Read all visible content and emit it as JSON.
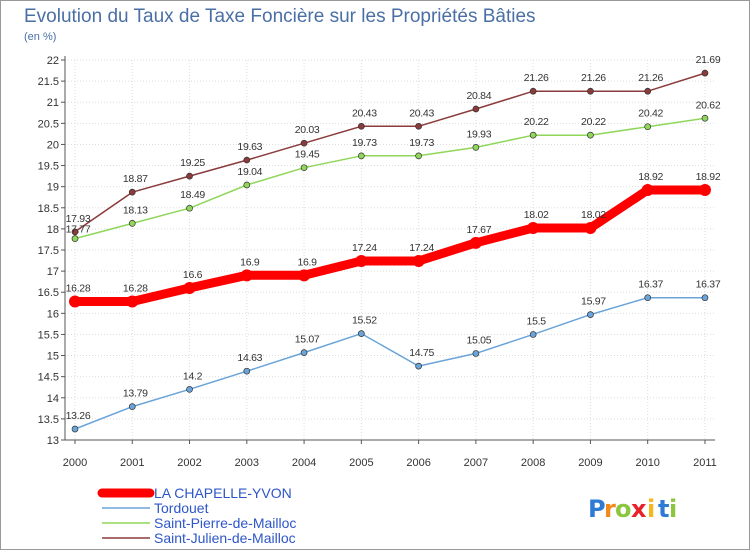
{
  "chart_data": {
    "type": "line",
    "title": "Evolution du Taux de Taxe Foncière sur les Propriétés Bâties",
    "subtitle": "(en %)",
    "x": [
      "2000",
      "2001",
      "2002",
      "2003",
      "2004",
      "2005",
      "2006",
      "2007",
      "2008",
      "2009",
      "2010",
      "2011"
    ],
    "ylim": [
      13,
      22
    ],
    "yticks": [
      "13",
      "13.5",
      "14",
      "14.5",
      "15",
      "15.5",
      "16",
      "16.5",
      "17",
      "17.5",
      "18",
      "18.5",
      "19",
      "19.5",
      "20",
      "20.5",
      "21",
      "21.5",
      "22"
    ],
    "grid": true,
    "legend_position": "bottom-left",
    "series": [
      {
        "name": "LA CHAPELLE-YVON",
        "color": "#ff0000",
        "values": [
          16.28,
          16.28,
          16.6,
          16.9,
          16.9,
          17.24,
          17.24,
          17.67,
          18.02,
          18.02,
          18.92,
          18.92
        ],
        "labels": [
          "16.28",
          "16.28",
          "16.6",
          "16.9",
          "16.9",
          "17.24",
          "17.24",
          "17.67",
          "18.02",
          "18.02",
          "18.92",
          "18.92"
        ]
      },
      {
        "name": "Tordouet",
        "color": "#6aa4d9",
        "values": [
          13.26,
          13.79,
          14.2,
          14.63,
          15.07,
          15.52,
          14.75,
          15.05,
          15.5,
          15.97,
          16.37,
          16.37
        ],
        "labels": [
          "13.26",
          "13.79",
          "14.2",
          "14.63",
          "15.07",
          "15.52",
          "14.75",
          "15.05",
          "15.5",
          "15.97",
          "16.37",
          "16.37"
        ]
      },
      {
        "name": "Saint-Pierre-de-Mailloc",
        "color": "#8fd65a",
        "values": [
          17.77,
          18.13,
          18.49,
          19.04,
          19.45,
          19.73,
          19.73,
          19.93,
          20.22,
          20.22,
          20.42,
          20.62
        ],
        "labels": [
          "17.77",
          "18.13",
          "18.49",
          "19.04",
          "19.45",
          "19.73",
          "19.73",
          "19.93",
          "20.22",
          "20.22",
          "20.42",
          "20.62"
        ]
      },
      {
        "name": "Saint-Julien-de-Mailloc",
        "color": "#8b3b3b",
        "values": [
          17.93,
          18.87,
          19.25,
          19.63,
          20.03,
          20.43,
          20.43,
          20.84,
          21.26,
          21.26,
          21.26,
          21.69
        ],
        "labels": [
          "17.93",
          "18.87",
          "19.25",
          "19.63",
          "20.03",
          "20.43",
          "20.43",
          "20.84",
          "21.26",
          "21.26",
          "21.26",
          "21.69"
        ]
      }
    ]
  },
  "brand": {
    "letters": [
      "P",
      "r",
      "o",
      "x",
      "i",
      "t",
      "i"
    ],
    "colors": [
      "#2e7bd6",
      "#f08a1c",
      "#8cc63f",
      "#e8222a",
      "#f5b81c",
      "#2e7bd6",
      "#8cc63f"
    ]
  }
}
